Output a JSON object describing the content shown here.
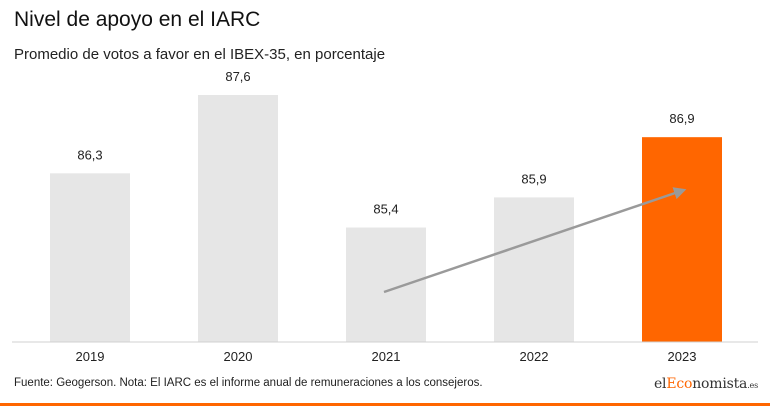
{
  "header": {
    "title": "Nivel de apoyo en el IARC",
    "subtitle": "Promedio de votos a favor en el IBEX-35, en porcentaje"
  },
  "footer": {
    "source": "Fuente: Geogerson. Nota: El IARC es el informe anual de remuneraciones a los consejeros.",
    "brand_pre": "el",
    "brand_accent": "Eco",
    "brand_post": "nomista",
    "brand_tld": ".es"
  },
  "colors": {
    "bar": "#e6e6e6",
    "highlight": "#ff6600",
    "arrow": "#9a9a9a",
    "accent": "#ff6600"
  },
  "chart_data": {
    "type": "bar",
    "title": "Nivel de apoyo en el IARC",
    "subtitle": "Promedio de votos a favor en el IBEX-35, en porcentaje",
    "categories": [
      "2019",
      "2020",
      "2021",
      "2022",
      "2023"
    ],
    "values": [
      86.3,
      87.6,
      85.4,
      85.9,
      86.9
    ],
    "value_labels": [
      "86,3",
      "87,6",
      "85,4",
      "85,9",
      "86,9"
    ],
    "highlight_index": 4,
    "ylim": [
      83.5,
      87.6
    ],
    "grid": false,
    "legend": "none",
    "annotation": "trend arrow rising from 2021 to 2023"
  }
}
